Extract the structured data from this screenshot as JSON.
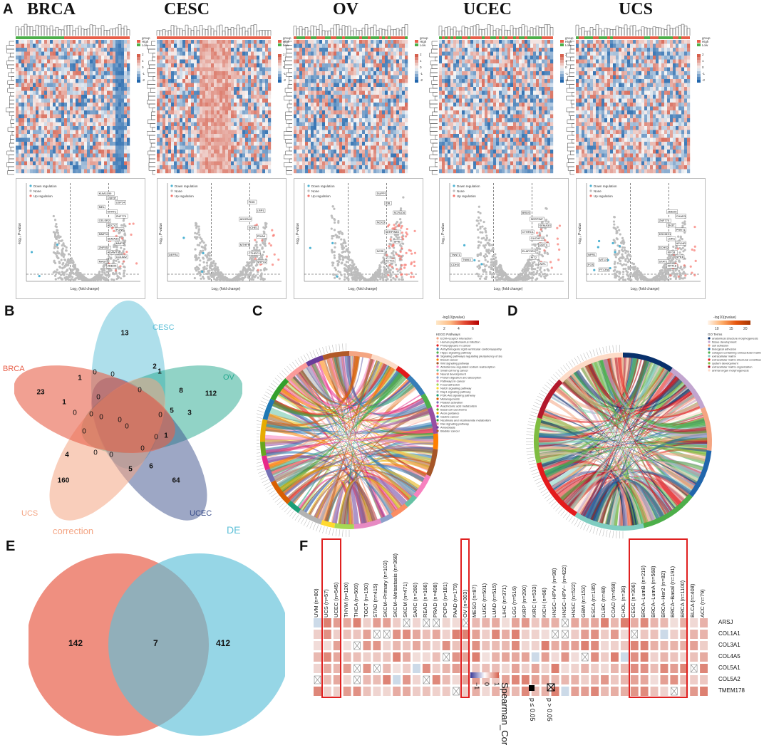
{
  "panels": {
    "a": "A",
    "b": "B",
    "c": "C",
    "d": "D",
    "e": "E",
    "f": "F"
  },
  "panel_a": {
    "cancers": [
      "BRCA",
      "CESC",
      "OV",
      "UCEC",
      "UCS"
    ],
    "heatmap_legend": {
      "group_title": "group",
      "high": "High",
      "low": "Low",
      "scale_ticks": [
        "2",
        "1",
        "0",
        "-1",
        "-2"
      ]
    },
    "volcano": {
      "legend": [
        "Down regulation",
        "None",
        "Up regulation"
      ],
      "xlabel": "Log₂ (fold change)",
      "ylabel": "-log₁₀ P-value",
      "gene_labels": {
        "BRCA": [
          "KIAA1199",
          "USP37",
          "USP24",
          "MEL",
          "NFATC",
          "ZNF770",
          "CELSR2",
          "ADCY2",
          "PONK",
          "MMP11",
          "SEMA3C",
          "MMP3",
          "ZNF552",
          "ADAMTS",
          "COL5A2",
          "MAST",
          "ZBED6"
        ],
        "CESC": [
          "DEFB1",
          "PDIK",
          "LRP1",
          "ADGRA2",
          "SCHEL",
          "PDIA4",
          "MTHFR",
          "CTHRC1",
          "SRPX2"
        ],
        "OV": [
          "DUPP2",
          "IDB",
          "SCRLD6",
          "NCKD",
          "SERPINE2",
          "SPIB",
          "NOSI",
          "ACTG1"
        ],
        "UCEC": [
          "TNNT1",
          "TNNI3",
          "CDH3",
          "BRDS",
          "SERPINF",
          "SEMA3G",
          "CTHRC1",
          "GUCHF12",
          "DDIT4",
          "ELAPOR1",
          "PIT2",
          "WIFL"
        ],
        "UCS": [
          "NPR1",
          "MT1X",
          "FOS",
          "PTCRA",
          "ZBED6",
          "CHAD3",
          "ZNF770",
          "SH3T",
          "PRRT1",
          "DSCMS1",
          "LOR1",
          "APLNR",
          "DCHS2",
          "KIF18",
          "SPEE",
          "STAT1",
          "KRT18"
        ]
      }
    }
  },
  "panel_b": {
    "sets": [
      "BRCA",
      "CESC",
      "OV",
      "UCEC",
      "UCS"
    ],
    "numbers": [
      "13",
      "112",
      "64",
      "160",
      "23",
      "2",
      "1",
      "8",
      "5",
      "3",
      "1",
      "6",
      "5",
      "4",
      "1",
      "1",
      "0",
      "0",
      "0",
      "0",
      "0",
      "0",
      "0",
      "0",
      "0",
      "0",
      "0",
      "0",
      "0",
      "0",
      "0"
    ],
    "colors": {
      "BRCA": "#e8604a",
      "CESC": "#5ec0d8",
      "OV": "#24a88e",
      "UCEC": "#3b4f8c",
      "UCS": "#f4a584"
    }
  },
  "panel_c": {
    "legend_title": "-log10(pvalue)",
    "legend_ticks": [
      "2",
      "4",
      "6"
    ],
    "terms_title": "KEGG Pathways",
    "terms": [
      "ECM-receptor interaction",
      "Human papillomavirus infection",
      "Proteoglycans in cancer",
      "Arrhythmogenic right ventricular cardiomyopathy (ARVC)",
      "Hippo signaling pathway",
      "Signaling pathways regulating pluripotency of stem cells",
      "Breast cancer",
      "Wnt signaling pathway",
      "Aldosterone-regulated sodium reabsorption",
      "Small cell lung cancer",
      "Neural development",
      "Protein digestion and absorption",
      "Pathways in cancer",
      "Focal adhesion",
      "Notch signaling pathway",
      "Rap1 signaling pathway",
      "PI3K-Akt signaling pathway",
      "Melanogenesis",
      "Platelet activation",
      "Arachidonic acid metabolism",
      "Basal cell carcinoma",
      "Axon guidance",
      "Gastric cancer",
      "Nicotinate and nicotinamide metabolism",
      "Ras signaling pathway",
      "Amoebiasis",
      "Bladder cancer"
    ]
  },
  "panel_d": {
    "legend_title": "-log10(pvalue)",
    "legend_ticks": [
      "10",
      "15",
      "20"
    ],
    "terms_title": "GO Terms",
    "terms": [
      "anatomical structure morphogenesis",
      "tissue development",
      "cell adhesion",
      "biological adhesion",
      "collagen-containing extracellular matrix",
      "extracellular matrix",
      "extracellular matrix structural constituent",
      "system development",
      "extracellular matrix organization",
      "animal organ morphogenesis"
    ]
  },
  "panel_e": {
    "labels": {
      "left": "correction",
      "right": "DE"
    },
    "values": {
      "left_only": "142",
      "overlap": "7",
      "right_only": "412"
    },
    "colors": {
      "left": "#e8604a",
      "right": "#5ec0d8"
    }
  },
  "panel_f": {
    "columns": [
      "UVM (n=80)",
      "UCS (n=57)",
      "UCEC (n=545)",
      "THYM (n=120)",
      "THCA (n=509)",
      "TGCT (n=150)",
      "STAD (n=415)",
      "SKCM−Primary (n=103)",
      "SKCM−Metastasis (n=368)",
      "SKCM (n=471)",
      "SARC (n=260)",
      "READ (n=166)",
      "PRAD (n=498)",
      "PCPG (n=181)",
      "PAAD (n=179)",
      "OV (n=303)",
      "MESO (n=87)",
      "LUSC (n=501)",
      "LUAD (n=515)",
      "LIHC (n=371)",
      "LGG (n=516)",
      "KIRP (n=290)",
      "KIRC (n=533)",
      "KICH (n=66)",
      "HNSC−HPV+ (n=98)",
      "HNSC−HPV− (n=422)",
      "HNSC (n=522)",
      "GBM (n=153)",
      "ESCA (n=185)",
      "DLBC (n=48)",
      "COAD (n=458)",
      "CHOL (n=36)",
      "CESC (n=306)",
      "BRCA−LumB (n=219)",
      "BRCA−LumA (n=568)",
      "BRCA−Her2 (n=82)",
      "BRCA−Basal (n=191)",
      "BRCA (n=1100)",
      "BLCA (n=408)",
      "ACC (n=79)"
    ],
    "rows": [
      "ARSJ",
      "COL1A1",
      "COL3A1",
      "COL4A5",
      "COL5A1",
      "COL5A2",
      "TMEM178"
    ],
    "highlighted": [
      "UCS (n=57)",
      "UCEC (n=545)",
      "OV (n=303)",
      "CESC (n=306)",
      "BRCA−LumB (n=219)",
      "BRCA−LumA (n=568)",
      "BRCA−Her2 (n=82)",
      "BRCA−Basal (n=191)",
      "BRCA (n=1100)"
    ],
    "legend": {
      "title": "Spearman_Cor",
      "ticks": [
        "1",
        "0",
        "−1"
      ],
      "sig": "p ≤ 0.05",
      "nonsig": "p > 0.05"
    }
  }
}
